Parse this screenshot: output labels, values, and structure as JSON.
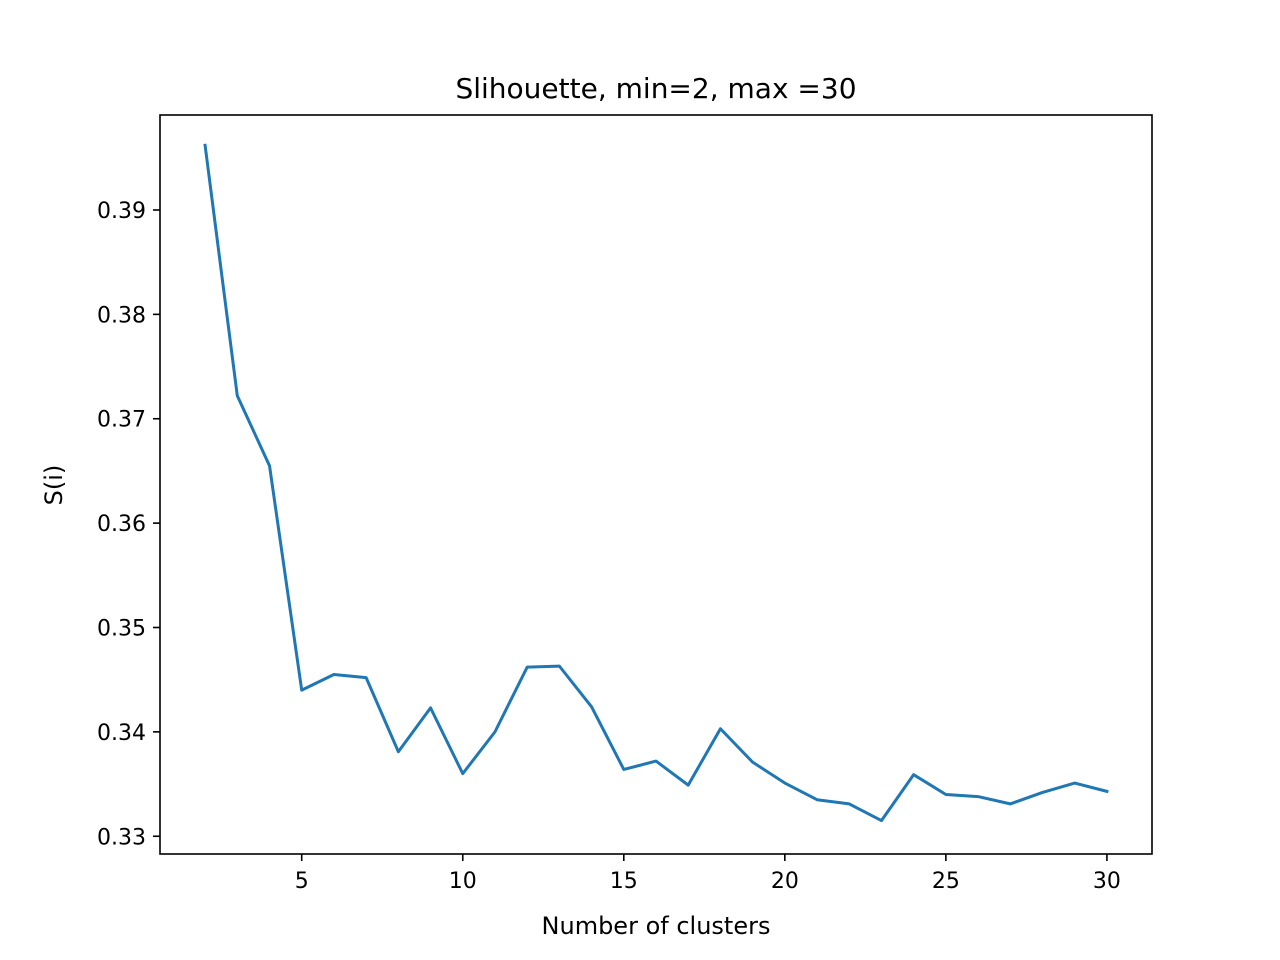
{
  "chart_data": {
    "type": "line",
    "title": "Slihouette, min=2, max =30",
    "xlabel": "Number of clusters",
    "ylabel": "S(i)",
    "xlim": [
      0.6,
      31.4
    ],
    "ylim": [
      0.3283,
      0.3991
    ],
    "x_ticks": [
      5,
      10,
      15,
      20,
      25,
      30
    ],
    "x_tick_labels": [
      "5",
      "10",
      "15",
      "20",
      "25",
      "30"
    ],
    "y_ticks": [
      0.33,
      0.34,
      0.35,
      0.36,
      0.37,
      0.38,
      0.39
    ],
    "y_tick_labels": [
      "0.33",
      "0.34",
      "0.35",
      "0.36",
      "0.37",
      "0.38",
      "0.39"
    ],
    "grid": false,
    "series": [
      {
        "color": "#1f77b4",
        "x": [
          2,
          3,
          4,
          5,
          6,
          7,
          8,
          9,
          10,
          11,
          12,
          13,
          14,
          15,
          16,
          17,
          18,
          19,
          20,
          21,
          22,
          23,
          24,
          25,
          26,
          27,
          28,
          29,
          30
        ],
        "y": [
          0.3962,
          0.3722,
          0.3655,
          0.344,
          0.3455,
          0.3452,
          0.3381,
          0.3423,
          0.336,
          0.34,
          0.3462,
          0.3463,
          0.3424,
          0.3364,
          0.3372,
          0.3349,
          0.3403,
          0.3371,
          0.3351,
          0.3335,
          0.3331,
          0.3315,
          0.3359,
          0.334,
          0.3338,
          0.3331,
          0.3342,
          0.3351,
          0.3343
        ]
      }
    ]
  }
}
